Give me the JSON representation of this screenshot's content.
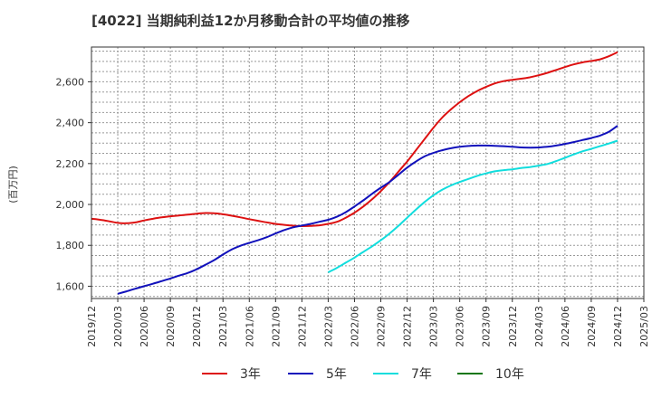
{
  "title": "[4022]  当期純利益12か月移動合計の平均値の推移",
  "chart_data": {
    "type": "line",
    "title": "[4022]  当期純利益12か月移動合計の平均値の推移",
    "ylabel": "(百万円)",
    "xlabel": "",
    "ylim": [
      1540,
      2770
    ],
    "yticks": [
      1600,
      1800,
      2000,
      2200,
      2400,
      2600
    ],
    "ytick_labels": [
      "1,600",
      "1,800",
      "2,000",
      "2,200",
      "2,400",
      "2,600"
    ],
    "xtick_labels": [
      "2019/12",
      "2020/03",
      "2020/06",
      "2020/09",
      "2020/12",
      "2021/03",
      "2021/06",
      "2021/09",
      "2021/12",
      "2022/03",
      "2022/06",
      "2022/09",
      "2022/12",
      "2023/03",
      "2023/06",
      "2023/09",
      "2023/12",
      "2024/03",
      "2024/06",
      "2024/09",
      "2024/12",
      "2025/03"
    ],
    "grid": true,
    "legend_position": "bottom",
    "series": [
      {
        "name": "3年",
        "color": "#dd1111",
        "x": [
          "2019/12",
          "2020/01",
          "2020/02",
          "2020/03",
          "2020/04",
          "2020/05",
          "2020/06",
          "2020/07",
          "2020/08",
          "2020/09",
          "2020/10",
          "2020/11",
          "2020/12",
          "2021/01",
          "2021/02",
          "2021/03",
          "2021/04",
          "2021/05",
          "2021/06",
          "2021/07",
          "2021/08",
          "2021/09",
          "2021/10",
          "2021/11",
          "2021/12",
          "2022/01",
          "2022/02",
          "2022/03",
          "2022/04",
          "2022/05",
          "2022/06",
          "2022/07",
          "2022/08",
          "2022/09",
          "2022/10",
          "2022/11",
          "2022/12",
          "2023/01",
          "2023/02",
          "2023/03",
          "2023/04",
          "2023/05",
          "2023/06",
          "2023/07",
          "2023/08",
          "2023/09",
          "2023/10",
          "2023/11",
          "2023/12",
          "2024/01",
          "2024/02",
          "2024/03",
          "2024/04",
          "2024/05",
          "2024/06",
          "2024/07",
          "2024/08",
          "2024/09",
          "2024/10",
          "2024/11",
          "2024/12"
        ],
        "values": [
          1930,
          1925,
          1918,
          1910,
          1908,
          1912,
          1922,
          1930,
          1937,
          1942,
          1946,
          1950,
          1955,
          1958,
          1957,
          1952,
          1945,
          1937,
          1928,
          1920,
          1912,
          1905,
          1900,
          1896,
          1894,
          1895,
          1898,
          1905,
          1915,
          1935,
          1960,
          1990,
          2025,
          2065,
          2110,
          2160,
          2210,
          2265,
          2320,
          2375,
          2425,
          2465,
          2500,
          2530,
          2555,
          2575,
          2592,
          2603,
          2610,
          2615,
          2622,
          2632,
          2644,
          2658,
          2672,
          2685,
          2695,
          2702,
          2710,
          2725,
          2745
        ]
      },
      {
        "name": "5年",
        "color": "#1111bb",
        "x": [
          "2020/03",
          "2020/04",
          "2020/05",
          "2020/06",
          "2020/07",
          "2020/08",
          "2020/09",
          "2020/10",
          "2020/11",
          "2020/12",
          "2021/01",
          "2021/02",
          "2021/03",
          "2021/04",
          "2021/05",
          "2021/06",
          "2021/07",
          "2021/08",
          "2021/09",
          "2021/10",
          "2021/11",
          "2021/12",
          "2022/01",
          "2022/02",
          "2022/03",
          "2022/04",
          "2022/05",
          "2022/06",
          "2022/07",
          "2022/08",
          "2022/09",
          "2022/10",
          "2022/11",
          "2022/12",
          "2023/01",
          "2023/02",
          "2023/03",
          "2023/04",
          "2023/05",
          "2023/06",
          "2023/07",
          "2023/08",
          "2023/09",
          "2023/10",
          "2023/11",
          "2023/12",
          "2024/01",
          "2024/02",
          "2024/03",
          "2024/04",
          "2024/05",
          "2024/06",
          "2024/07",
          "2024/08",
          "2024/09",
          "2024/10",
          "2024/11",
          "2024/12"
        ],
        "values": [
          1563,
          1575,
          1588,
          1600,
          1612,
          1625,
          1638,
          1652,
          1665,
          1683,
          1705,
          1728,
          1755,
          1780,
          1798,
          1812,
          1825,
          1840,
          1858,
          1875,
          1888,
          1897,
          1905,
          1915,
          1925,
          1940,
          1962,
          1990,
          2020,
          2052,
          2082,
          2110,
          2145,
          2180,
          2210,
          2235,
          2252,
          2265,
          2275,
          2282,
          2286,
          2288,
          2288,
          2287,
          2285,
          2282,
          2279,
          2278,
          2279,
          2282,
          2288,
          2296,
          2305,
          2315,
          2325,
          2337,
          2355,
          2385
        ]
      },
      {
        "name": "7年",
        "color": "#11dddd",
        "x": [
          "2022/03",
          "2022/04",
          "2022/05",
          "2022/06",
          "2022/07",
          "2022/08",
          "2022/09",
          "2022/10",
          "2022/11",
          "2022/12",
          "2023/01",
          "2023/02",
          "2023/03",
          "2023/04",
          "2023/05",
          "2023/06",
          "2023/07",
          "2023/08",
          "2023/09",
          "2023/10",
          "2023/11",
          "2023/12",
          "2024/01",
          "2024/02",
          "2024/03",
          "2024/04",
          "2024/05",
          "2024/06",
          "2024/07",
          "2024/08",
          "2024/09",
          "2024/10",
          "2024/11",
          "2024/12"
        ],
        "values": [
          1668,
          1690,
          1715,
          1740,
          1768,
          1795,
          1825,
          1858,
          1895,
          1935,
          1975,
          2012,
          2045,
          2072,
          2093,
          2110,
          2125,
          2140,
          2152,
          2162,
          2168,
          2172,
          2178,
          2183,
          2190,
          2198,
          2212,
          2228,
          2245,
          2260,
          2272,
          2285,
          2298,
          2312
        ]
      },
      {
        "name": "10年",
        "color": "#117711",
        "x": [],
        "values": []
      }
    ]
  }
}
